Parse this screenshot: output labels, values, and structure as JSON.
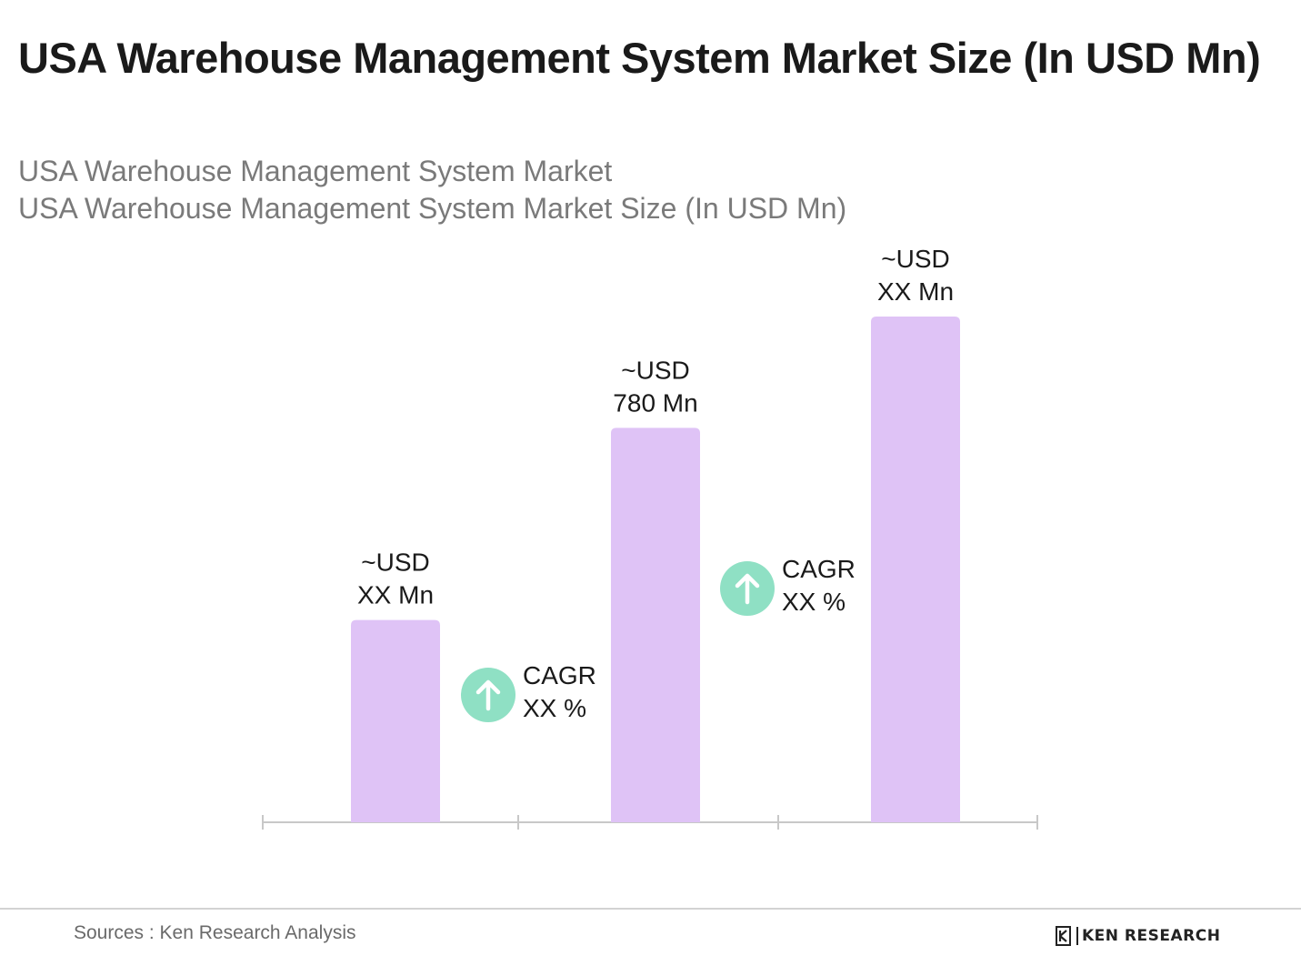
{
  "header": {
    "title": "USA Warehouse Management System Market Size (In USD Mn)",
    "subtitle_1": "USA Warehouse Management System Market",
    "subtitle_2": "USA Warehouse Management System Market Size (In USD Mn)"
  },
  "chart_data": {
    "type": "bar",
    "categories": [
      "",
      "",
      ""
    ],
    "series": [
      {
        "values": [
          400,
          780,
          1000
        ],
        "labels": [
          [
            "~USD",
            "XX Mn"
          ],
          [
            "~USD",
            "780 Mn"
          ],
          [
            "~USD",
            "XX Mn"
          ]
        ]
      }
    ],
    "ylim": [
      0,
      1000
    ],
    "grid": false,
    "bar_color": "#dfc3f6",
    "annotations": [
      {
        "line1": "CAGR",
        "line2": "XX %",
        "icon": "arrow-up-icon"
      },
      {
        "line1": "CAGR",
        "line2": "XX %",
        "icon": "arrow-up-icon"
      }
    ],
    "annotation_color": "#8fe0c4",
    "axis_color": "#c8c8c8"
  },
  "footer": {
    "source": "Sources : Ken Research Analysis",
    "logo_text": "KEN RESEARCH",
    "logo_icon": "ken-research-logo-icon"
  }
}
